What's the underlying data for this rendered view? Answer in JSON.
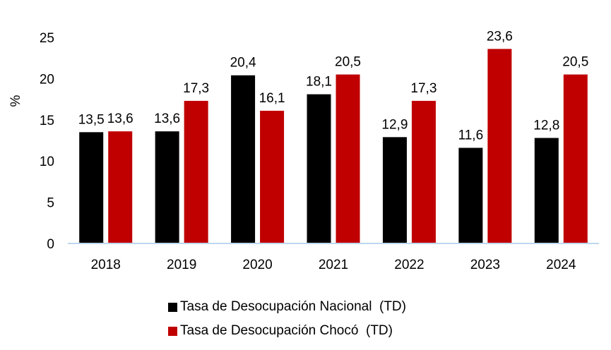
{
  "chart_data": {
    "type": "bar",
    "categories": [
      "2018",
      "2019",
      "2020",
      "2021",
      "2022",
      "2023",
      "2024"
    ],
    "series": [
      {
        "name": "Tasa de Desocupación Nacional  (TD)",
        "color": "#000000",
        "values": [
          13.5,
          13.6,
          20.4,
          18.1,
          12.9,
          11.6,
          12.8
        ],
        "labels": [
          "13,5",
          "13,6",
          "20,4",
          "18,1",
          "12,9",
          "11,6",
          "12,8"
        ]
      },
      {
        "name": "Tasa de Desocupación Chocó  (TD)",
        "color": "#c00000",
        "values": [
          13.6,
          17.3,
          16.1,
          20.5,
          17.3,
          23.6,
          20.5
        ],
        "labels": [
          "13,6",
          "17,3",
          "16,1",
          "20,5",
          "17,3",
          "23,6",
          "20,5"
        ]
      }
    ],
    "title": "",
    "xlabel": "",
    "ylabel": "%",
    "ylim": [
      0,
      25
    ],
    "yticks": [
      "0",
      "5",
      "10",
      "15",
      "20",
      "25"
    ],
    "grid": false,
    "legend_position": "bottom",
    "axis_color": "#bdd7ee"
  }
}
